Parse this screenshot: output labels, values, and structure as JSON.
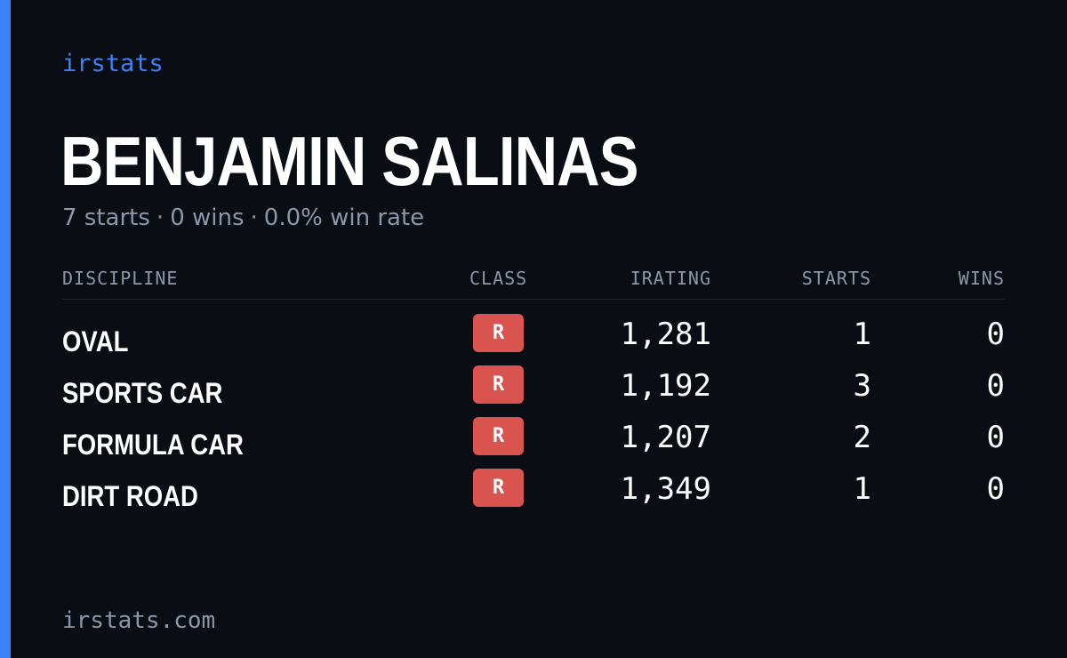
{
  "brand": "irstats",
  "driver": {
    "name": "BENJAMIN SALINAS",
    "starts_text": "7 starts",
    "wins_text": "0 wins",
    "win_rate_text": "0.0% win rate",
    "separator": "·"
  },
  "table": {
    "headers": {
      "discipline": "DISCIPLINE",
      "class": "CLASS",
      "irating": "IRATING",
      "starts": "STARTS",
      "wins": "WINS"
    },
    "rows": [
      {
        "discipline": "OVAL",
        "class": "R",
        "irating": "1,281",
        "starts": "1",
        "wins": "0"
      },
      {
        "discipline": "SPORTS CAR",
        "class": "R",
        "irating": "1,192",
        "starts": "3",
        "wins": "0"
      },
      {
        "discipline": "FORMULA CAR",
        "class": "R",
        "irating": "1,207",
        "starts": "2",
        "wins": "0"
      },
      {
        "discipline": "DIRT ROAD",
        "class": "R",
        "irating": "1,349",
        "starts": "1",
        "wins": "0"
      }
    ]
  },
  "footer": "irstats.com",
  "colors": {
    "background": "#0a0d14",
    "accent": "#3b82f6",
    "class_r_badge": "#d9534f",
    "muted_text": "#8d96a6"
  }
}
